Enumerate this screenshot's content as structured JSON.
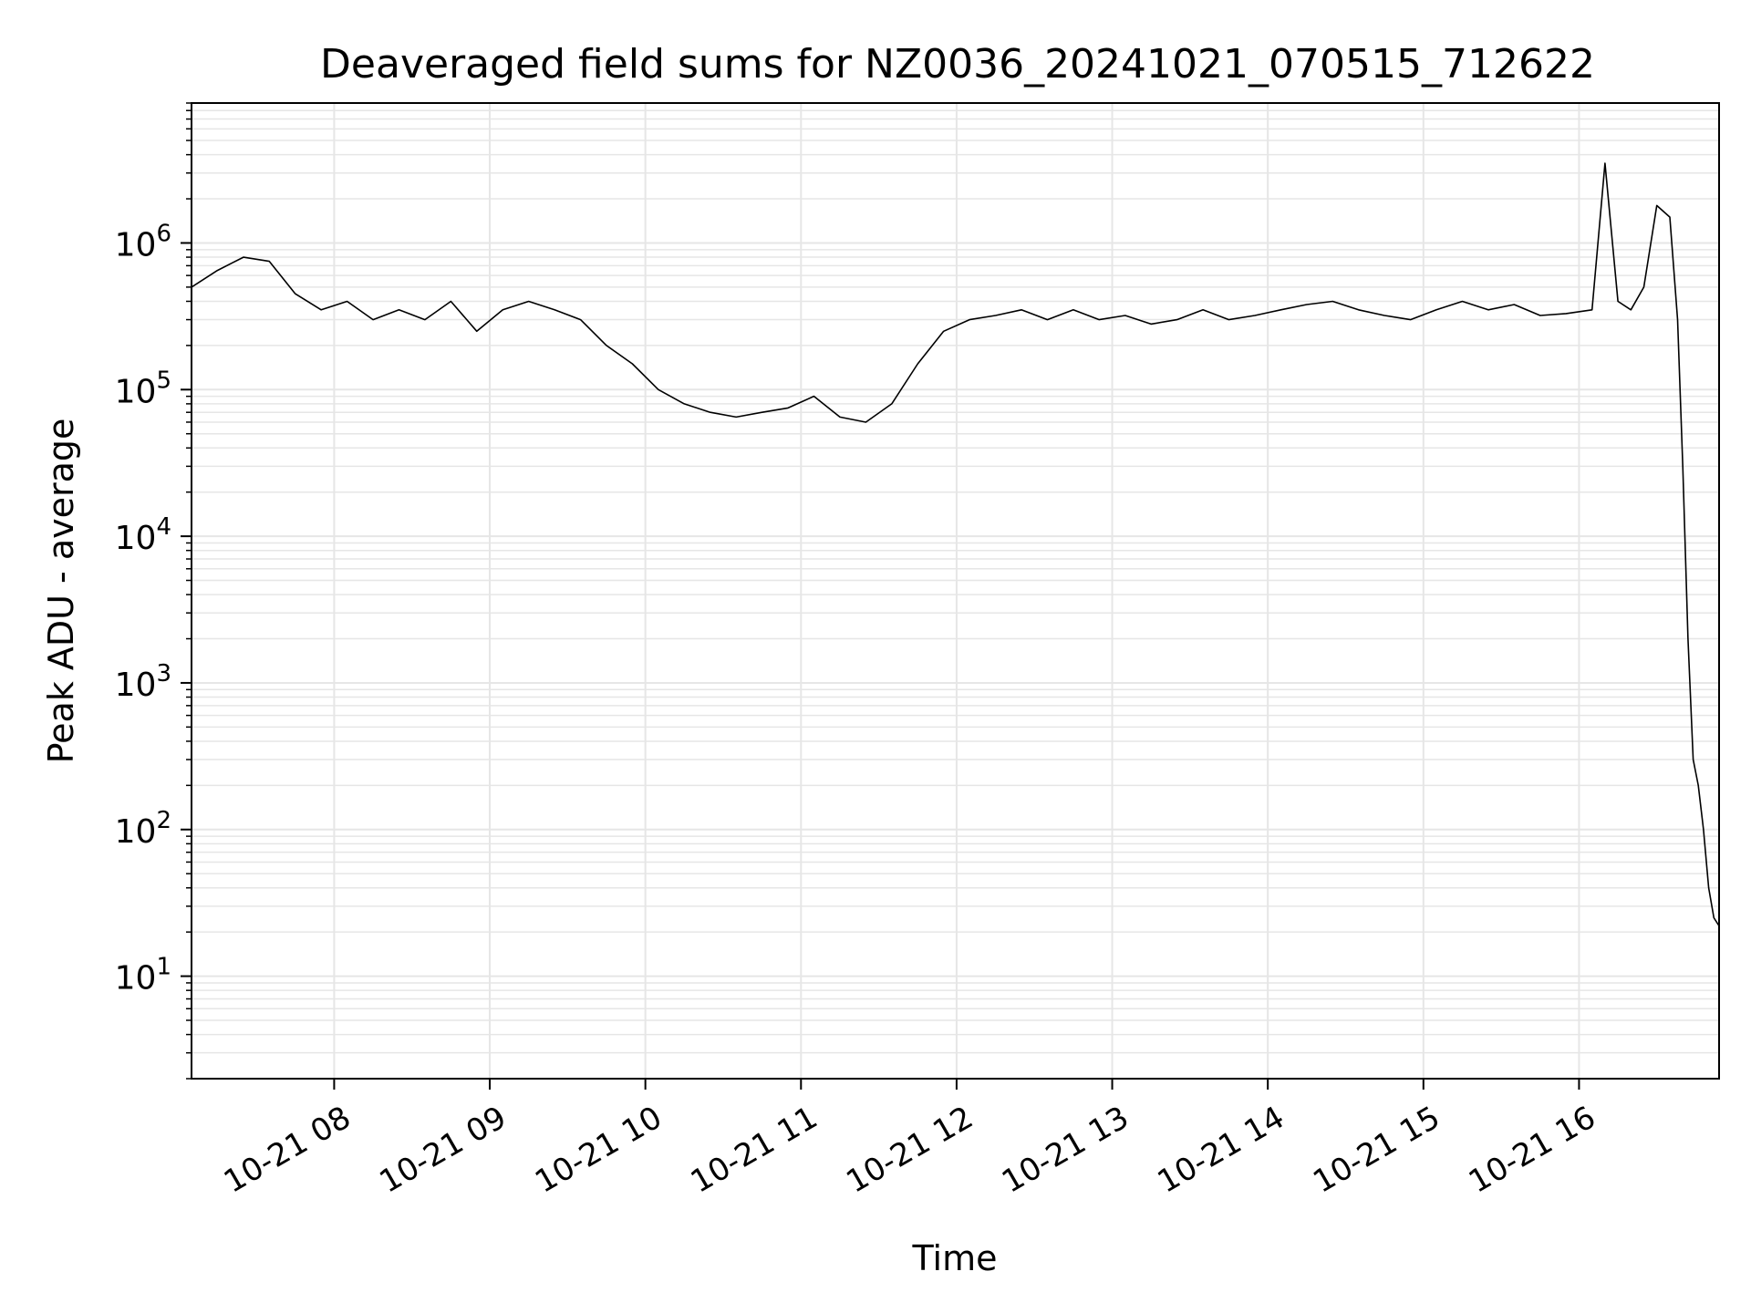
{
  "chart_data": {
    "type": "line",
    "title": "Deaveraged field sums for NZ0036_20241021_070515_712622",
    "xlabel": "Time",
    "ylabel": "Peak ADU - average",
    "yscale": "log",
    "xlim": [
      "2024-10-21 07:05",
      "2024-10-21 16:54"
    ],
    "ylim": [
      2,
      9000000
    ],
    "grid": true,
    "x_ticks": [
      {
        "value": "2024-10-21 08:00",
        "label": "10-21 08"
      },
      {
        "value": "2024-10-21 09:00",
        "label": "10-21 09"
      },
      {
        "value": "2024-10-21 10:00",
        "label": "10-21 10"
      },
      {
        "value": "2024-10-21 11:00",
        "label": "10-21 11"
      },
      {
        "value": "2024-10-21 12:00",
        "label": "10-21 12"
      },
      {
        "value": "2024-10-21 13:00",
        "label": "10-21 13"
      },
      {
        "value": "2024-10-21 14:00",
        "label": "10-21 14"
      },
      {
        "value": "2024-10-21 15:00",
        "label": "10-21 15"
      },
      {
        "value": "2024-10-21 16:00",
        "label": "10-21 16"
      }
    ],
    "y_ticks": [
      {
        "value": 10,
        "base": "10",
        "exp": "1"
      },
      {
        "value": 100,
        "base": "10",
        "exp": "2"
      },
      {
        "value": 1000,
        "base": "10",
        "exp": "3"
      },
      {
        "value": 10000,
        "base": "10",
        "exp": "4"
      },
      {
        "value": 100000,
        "base": "10",
        "exp": "5"
      },
      {
        "value": 1000000,
        "base": "10",
        "exp": "6"
      }
    ],
    "line_color": "#000000",
    "grid_color": "#e6e6e6",
    "series": [
      {
        "x": [
          "2024-10-21 07:05",
          "2024-10-21 07:15",
          "2024-10-21 07:25",
          "2024-10-21 07:35",
          "2024-10-21 07:45",
          "2024-10-21 07:55",
          "2024-10-21 08:05",
          "2024-10-21 08:15",
          "2024-10-21 08:25",
          "2024-10-21 08:35",
          "2024-10-21 08:45",
          "2024-10-21 08:55",
          "2024-10-21 09:05",
          "2024-10-21 09:15",
          "2024-10-21 09:25",
          "2024-10-21 09:35",
          "2024-10-21 09:45",
          "2024-10-21 09:55",
          "2024-10-21 10:05",
          "2024-10-21 10:15",
          "2024-10-21 10:25",
          "2024-10-21 10:35",
          "2024-10-21 10:45",
          "2024-10-21 10:55",
          "2024-10-21 11:05",
          "2024-10-21 11:15",
          "2024-10-21 11:25",
          "2024-10-21 11:35",
          "2024-10-21 11:45",
          "2024-10-21 11:55",
          "2024-10-21 12:05",
          "2024-10-21 12:15",
          "2024-10-21 12:25",
          "2024-10-21 12:35",
          "2024-10-21 12:45",
          "2024-10-21 12:55",
          "2024-10-21 13:05",
          "2024-10-21 13:15",
          "2024-10-21 13:25",
          "2024-10-21 13:35",
          "2024-10-21 13:45",
          "2024-10-21 13:55",
          "2024-10-21 14:05",
          "2024-10-21 14:15",
          "2024-10-21 14:25",
          "2024-10-21 14:35",
          "2024-10-21 14:45",
          "2024-10-21 14:55",
          "2024-10-21 15:05",
          "2024-10-21 15:15",
          "2024-10-21 15:25",
          "2024-10-21 15:35",
          "2024-10-21 15:45",
          "2024-10-21 15:55",
          "2024-10-21 16:05",
          "2024-10-21 16:10",
          "2024-10-21 16:15",
          "2024-10-21 16:20",
          "2024-10-21 16:25",
          "2024-10-21 16:30",
          "2024-10-21 16:35",
          "2024-10-21 16:38",
          "2024-10-21 16:40",
          "2024-10-21 16:42",
          "2024-10-21 16:44",
          "2024-10-21 16:46",
          "2024-10-21 16:48",
          "2024-10-21 16:50",
          "2024-10-21 16:52",
          "2024-10-21 16:54"
        ],
        "y": [
          500000,
          650000,
          800000,
          750000,
          450000,
          350000,
          400000,
          300000,
          350000,
          300000,
          400000,
          250000,
          350000,
          400000,
          350000,
          300000,
          200000,
          150000,
          100000,
          80000,
          70000,
          65000,
          70000,
          75000,
          90000,
          65000,
          60000,
          80000,
          150000,
          250000,
          300000,
          320000,
          350000,
          300000,
          350000,
          300000,
          320000,
          280000,
          300000,
          350000,
          300000,
          320000,
          350000,
          380000,
          400000,
          350000,
          320000,
          300000,
          350000,
          400000,
          350000,
          380000,
          320000,
          330000,
          350000,
          3500000,
          400000,
          350000,
          500000,
          1800000,
          1500000,
          300000,
          30000,
          2000,
          300,
          200,
          100,
          40,
          25,
          22
        ]
      }
    ]
  }
}
